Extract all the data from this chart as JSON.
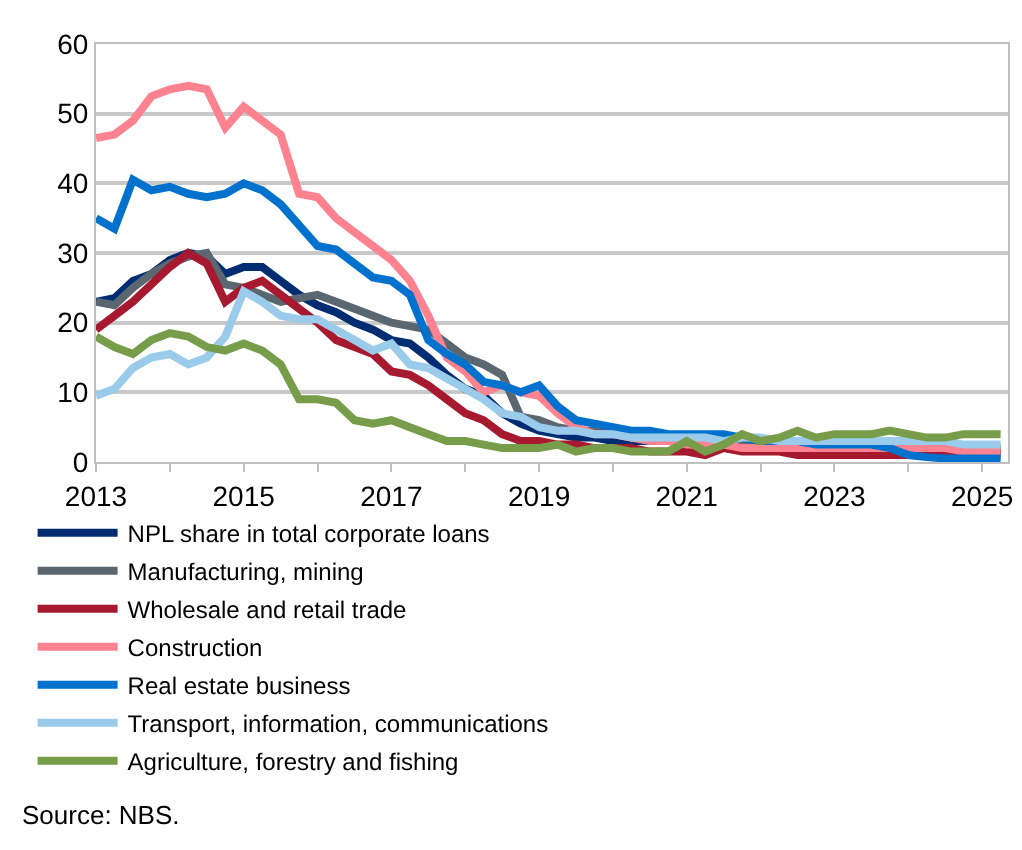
{
  "chart_data": {
    "type": "line",
    "x": [
      2013,
      2013.25,
      2013.5,
      2013.75,
      2014,
      2014.25,
      2014.5,
      2014.75,
      2015,
      2015.25,
      2015.5,
      2015.75,
      2016,
      2016.25,
      2016.5,
      2016.75,
      2017,
      2017.25,
      2017.5,
      2017.75,
      2018,
      2018.25,
      2018.5,
      2018.75,
      2019,
      2019.25,
      2019.5,
      2019.75,
      2020,
      2020.25,
      2020.5,
      2020.75,
      2021,
      2021.25,
      2021.5,
      2021.75,
      2022,
      2022.25,
      2022.5,
      2022.75,
      2023,
      2023.25,
      2023.5,
      2023.75,
      2024,
      2024.25,
      2024.5,
      2024.75,
      2025,
      2025.25
    ],
    "series": [
      {
        "name": "NPL share in total corporate loans",
        "color": "#002d72",
        "values": [
          23,
          23.5,
          26,
          27,
          29,
          30,
          29.5,
          27,
          28,
          28,
          26,
          24,
          22.5,
          21.5,
          20,
          19,
          17.5,
          17,
          15,
          12.5,
          10.5,
          9.5,
          7,
          5.5,
          4.5,
          4,
          3.5,
          3.5,
          3,
          3,
          3,
          3,
          3,
          3,
          2.5,
          2.5,
          2.5,
          2.5,
          2.5,
          2.5,
          2.5,
          2.5,
          2,
          2,
          1.5,
          1.5,
          1.5,
          1.5,
          1.5,
          1.5
        ]
      },
      {
        "name": "Manufacturing, mining",
        "color": "#5b6770",
        "values": [
          23,
          22.5,
          25,
          27,
          28.5,
          29.5,
          30,
          25.5,
          25,
          24,
          23,
          23.5,
          24,
          23,
          22,
          21,
          20,
          19.5,
          19,
          17,
          15,
          14,
          12.5,
          6.5,
          6,
          5,
          4.5,
          4.5,
          4,
          4,
          3.5,
          3.5,
          3.5,
          3,
          3,
          3,
          2.5,
          2.5,
          2.5,
          2.5,
          2.5,
          2.5,
          2.5,
          2,
          2,
          2,
          2,
          2,
          2,
          2
        ]
      },
      {
        "name": "Wholesale and retail trade",
        "color": "#a6192e",
        "values": [
          19,
          21,
          23,
          25.5,
          28,
          30,
          28.5,
          23,
          25,
          26,
          24,
          22,
          20,
          17.5,
          16.5,
          15.5,
          13,
          12.5,
          11,
          9,
          7,
          6,
          4,
          3,
          3,
          2.5,
          2.5,
          2,
          2,
          2,
          1.5,
          1.5,
          1.5,
          1,
          2,
          1.5,
          1.5,
          1.5,
          1,
          1,
          1,
          1,
          1,
          1,
          1,
          1,
          1,
          1,
          1,
          1
        ]
      },
      {
        "name": "Construction",
        "color": "#ff8290",
        "values": [
          46.5,
          47,
          49,
          52.5,
          53.5,
          54,
          53.5,
          48,
          51,
          49,
          47,
          38.5,
          38,
          35,
          33,
          31,
          29,
          26,
          21,
          15,
          13,
          10,
          11,
          10,
          9.5,
          7,
          5,
          4,
          4,
          3.5,
          3,
          3,
          2.5,
          2.5,
          2.5,
          2,
          2,
          2,
          2,
          2,
          2,
          2,
          2,
          2,
          2,
          2,
          2,
          1.5,
          1.5,
          1.5
        ]
      },
      {
        "name": "Real estate business",
        "color": "#0072ce",
        "values": [
          35,
          33.5,
          40.5,
          39,
          39.5,
          38.5,
          38,
          38.5,
          40,
          39,
          37,
          34,
          31,
          30.5,
          28.5,
          26.5,
          26,
          24,
          17.5,
          15.5,
          14,
          11.5,
          11,
          10,
          11,
          8,
          6,
          5.5,
          5,
          4.5,
          4.5,
          4,
          4,
          4,
          4,
          3.5,
          3,
          3,
          3,
          2.5,
          2.5,
          2.5,
          2.5,
          2,
          1,
          0.7,
          0.5,
          0.5,
          0.5,
          0.5
        ]
      },
      {
        "name": "Transport, information, communications",
        "color": "#9bcbeb",
        "values": [
          9.5,
          10.5,
          13.5,
          15,
          15.5,
          14,
          15,
          18,
          24.5,
          23,
          21,
          20.5,
          20.5,
          19,
          17.5,
          16,
          17,
          14,
          13.5,
          12,
          10.5,
          9,
          7,
          6.5,
          5,
          4.5,
          4.5,
          4,
          4,
          3.5,
          3.5,
          3.5,
          3.5,
          3.5,
          3,
          3.5,
          3.5,
          3,
          3,
          3,
          3,
          3,
          3,
          3,
          3,
          3,
          3,
          2.5,
          2.5,
          2.5
        ]
      },
      {
        "name": "Agriculture, forestry and fishing",
        "color": "#789d4a",
        "values": [
          18,
          16.5,
          15.5,
          17.5,
          18.5,
          18,
          16.5,
          16,
          17,
          16,
          14,
          9,
          9,
          8.5,
          6,
          5.5,
          6,
          5,
          4,
          3,
          3,
          2.5,
          2,
          2,
          2,
          2.5,
          1.5,
          2,
          2,
          1.5,
          1.5,
          1.5,
          3,
          1.5,
          2.5,
          4,
          3,
          3.5,
          4.5,
          3.5,
          4,
          4,
          4,
          4.5,
          4,
          3.5,
          3.5,
          4,
          4,
          4
        ]
      }
    ],
    "xlim": [
      2013,
      2025.35
    ],
    "xticks": [
      2013,
      {
        "value": 2014,
        "label": null
      },
      2015,
      {
        "value": 2016,
        "label": null
      },
      2017,
      {
        "value": 2018,
        "label": null
      },
      2019,
      {
        "value": 2020,
        "label": null
      },
      2021,
      {
        "value": 2022,
        "label": null
      },
      2023,
      {
        "value": 2024,
        "label": null
      },
      2025
    ],
    "ylim": [
      0,
      60
    ],
    "yticks": [
      0,
      10,
      20,
      30,
      40,
      50,
      60
    ],
    "grid": "y",
    "legend": "bottom",
    "marker": "none",
    "line_style": "solid",
    "annotations": [
      "Source: NBS."
    ]
  }
}
